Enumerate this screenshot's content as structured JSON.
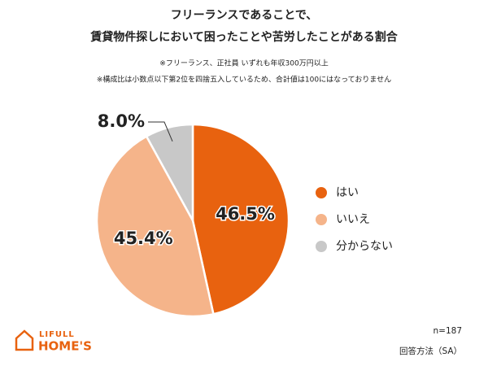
{
  "chart_data": {
    "type": "pie",
    "title": [
      "フリーランスであることで、",
      "賃貸物件探しにおいて困ったことや苦労したことがある割合"
    ],
    "notes": [
      "※フリーランス、正社員 いずれも年収300万円以上",
      "※構成比は小数点以下第2位を四捨五入しているため、合計値は100にはなっておりません"
    ],
    "categories": [
      "はい",
      "いいえ",
      "分からない"
    ],
    "values": [
      46.5,
      45.4,
      8.0
    ],
    "value_labels": [
      "46.5%",
      "45.4%",
      "8.0%"
    ],
    "colors": [
      "#e8620f",
      "#f5b48a",
      "#c8c8c8"
    ],
    "footer": [
      "n=187",
      "回答方法（SA）"
    ],
    "logo": [
      "LIFULL",
      "HOME'S"
    ]
  }
}
